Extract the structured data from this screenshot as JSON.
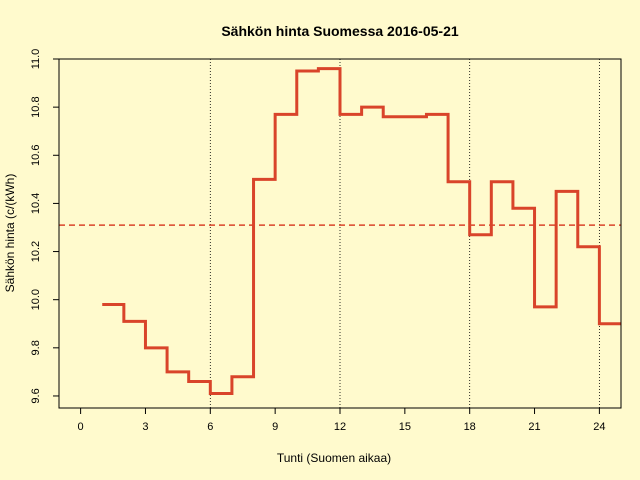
{
  "chart_data": {
    "type": "line",
    "step": true,
    "title": "Sähkön hinta Suomessa 2016-05-21",
    "xlabel": "Tunti (Suomen aikaa)",
    "ylabel": "Sähkön hinta (c/(kWh)",
    "xlim": [
      -1,
      25
    ],
    "ylim": [
      9.55,
      11.0
    ],
    "xticks": [
      0,
      3,
      6,
      9,
      12,
      15,
      18,
      21,
      24
    ],
    "xtick_labels": [
      "0",
      "3",
      "6",
      "9",
      "12",
      "15",
      "18",
      "21",
      "24"
    ],
    "yticks": [
      9.6,
      9.8,
      10.0,
      10.2,
      10.4,
      10.6,
      10.8,
      11.0
    ],
    "ytick_labels": [
      "9.6",
      "9.8",
      "10.0",
      "10.2",
      "10.4",
      "10.6",
      "10.8",
      "11.0"
    ],
    "vlines": [
      6,
      12,
      18,
      24
    ],
    "mean_line": 10.31,
    "colors": {
      "series": "#d9442a",
      "mean": "#d9442a",
      "background": "#fffacd"
    },
    "series": [
      {
        "x": [
          1,
          2,
          3,
          4,
          5,
          6,
          7,
          8,
          9,
          10,
          11,
          12,
          13,
          14,
          15,
          16,
          17,
          18,
          19,
          20,
          21,
          22,
          23,
          24
        ],
        "values": [
          9.98,
          9.91,
          9.8,
          9.7,
          9.66,
          9.61,
          9.68,
          10.5,
          10.77,
          10.95,
          10.96,
          10.77,
          10.8,
          10.76,
          10.76,
          10.77,
          10.49,
          10.27,
          10.49,
          10.38,
          9.97,
          10.45,
          10.22,
          9.9
        ]
      }
    ]
  }
}
